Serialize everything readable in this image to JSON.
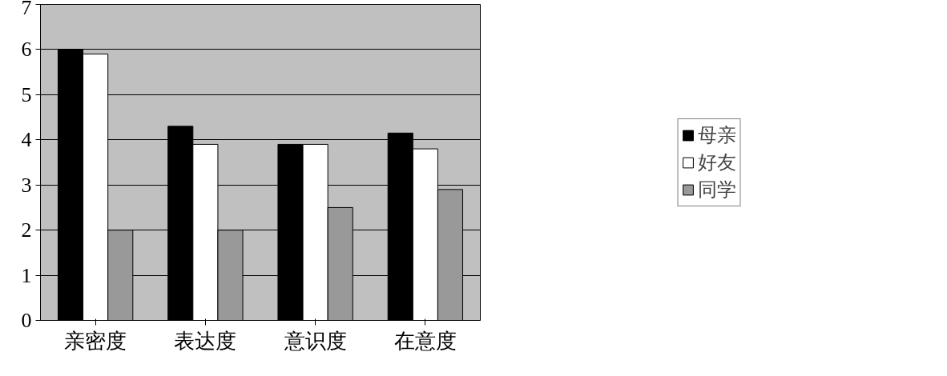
{
  "chart_data": {
    "type": "bar",
    "categories": [
      "亲密度",
      "表达度",
      "意识度",
      "在意度"
    ],
    "series": [
      {
        "name": "母亲",
        "color": "#000000",
        "values": [
          6.0,
          4.3,
          3.9,
          4.15
        ]
      },
      {
        "name": "好友",
        "color": "#ffffff",
        "values": [
          5.9,
          3.9,
          3.9,
          3.8
        ]
      },
      {
        "name": "同学",
        "color": "#999999",
        "values": [
          2.0,
          2.0,
          2.5,
          2.9
        ]
      }
    ],
    "ylim": [
      0,
      7
    ],
    "yticks": [
      0,
      1,
      2,
      3,
      4,
      5,
      6,
      7
    ],
    "grid": "y",
    "legend": "right"
  }
}
